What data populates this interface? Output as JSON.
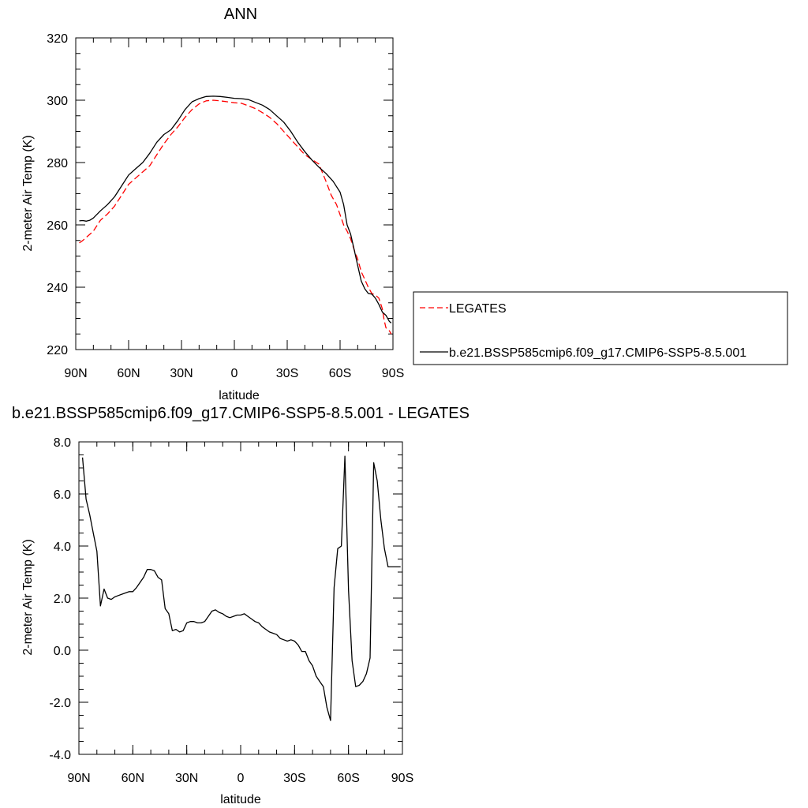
{
  "chart_data": [
    {
      "type": "line",
      "title": "ANN",
      "xlabel": "latitude",
      "ylabel": "2-meter Air Temp (K)",
      "xlim": [
        90,
        -90
      ],
      "ylim": [
        220,
        320
      ],
      "xticks": [
        90,
        60,
        30,
        0,
        -30,
        -60,
        -90
      ],
      "xtick_labels": [
        "90N",
        "60N",
        "30N",
        "0",
        "30S",
        "60S",
        "90S"
      ],
      "yticks": [
        220,
        240,
        260,
        280,
        300,
        320
      ],
      "ytick_labels": [
        "220",
        "240",
        "260",
        "280",
        "300",
        "320"
      ],
      "grid": false,
      "legend_position": "right",
      "series": [
        {
          "name": "LEGATES",
          "color": "#ff0000",
          "dash": "dashed",
          "x": [
            88,
            86,
            84,
            82,
            80,
            76,
            72,
            68,
            64,
            60,
            56,
            52,
            48,
            44,
            40,
            36,
            32,
            28,
            24,
            20,
            16,
            12,
            8,
            4,
            0,
            -4,
            -8,
            -12,
            -16,
            -20,
            -24,
            -28,
            -32,
            -36,
            -40,
            -44,
            -48,
            -52,
            -55,
            -58,
            -62,
            -64,
            -66,
            -68,
            -70,
            -72,
            -74,
            -76,
            -78,
            -80,
            -82,
            -84,
            -85,
            -86,
            -88,
            -89
          ],
          "values": [
            254.2,
            255.0,
            256.0,
            257.0,
            258.0,
            261.5,
            263.5,
            266.0,
            269.5,
            273.0,
            275.0,
            277.0,
            279.0,
            282.5,
            286.0,
            289.0,
            291.5,
            294.5,
            297.0,
            298.8,
            299.8,
            300.0,
            299.8,
            299.5,
            299.2,
            299.0,
            298.2,
            297.3,
            296.0,
            294.5,
            292.5,
            290.0,
            287.5,
            285.0,
            282.5,
            281.0,
            279.5,
            274.0,
            269.5,
            266.5,
            260.0,
            258.0,
            255.5,
            252.0,
            249.0,
            245.0,
            242.5,
            240.0,
            238.0,
            237.5,
            236.5,
            233.0,
            229.5,
            227.0,
            226.0,
            225.0
          ]
        },
        {
          "name": "b.e21.BSSP585cmip6.f09_g17.CMIP6-SSP5-8.5.001",
          "color": "#000000",
          "dash": "solid",
          "x": [
            88,
            86,
            84,
            82,
            80,
            76,
            72,
            68,
            64,
            60,
            56,
            52,
            48,
            44,
            40,
            36,
            32,
            28,
            24,
            20,
            16,
            12,
            8,
            4,
            0,
            -4,
            -8,
            -12,
            -16,
            -20,
            -24,
            -28,
            -32,
            -36,
            -40,
            -44,
            -48,
            -52,
            -56,
            -60,
            -62,
            -64,
            -66,
            -68,
            -70,
            -72,
            -74,
            -76,
            -78,
            -80,
            -82,
            -84,
            -86,
            -88,
            -89
          ],
          "values": [
            261.3,
            261.4,
            261.2,
            261.5,
            262.2,
            264.5,
            266.5,
            269.0,
            272.5,
            276.0,
            278.0,
            280.0,
            283.0,
            286.5,
            289.0,
            290.5,
            293.5,
            297.0,
            299.5,
            300.5,
            301.2,
            301.3,
            301.2,
            300.9,
            300.6,
            300.5,
            300.2,
            299.3,
            298.4,
            297.0,
            295.0,
            293.0,
            290.0,
            286.5,
            283.5,
            280.8,
            278.5,
            276.5,
            274.0,
            270.5,
            266.5,
            260.0,
            257.0,
            252.0,
            247.0,
            242.0,
            239.5,
            238.0,
            237.8,
            236.5,
            234.5,
            232.0,
            231.0,
            229.0,
            228.5
          ]
        }
      ]
    },
    {
      "type": "line",
      "title": "b.e21.BSSP585cmip6.f09_g17.CMIP6-SSP5-8.5.001 - LEGATES",
      "xlabel": "latitude",
      "ylabel": "2-meter Air Temp (K)",
      "xlim": [
        90,
        -90
      ],
      "ylim": [
        -4,
        8
      ],
      "xticks": [
        90,
        60,
        30,
        0,
        -30,
        -60,
        -90
      ],
      "xtick_labels": [
        "90N",
        "60N",
        "30N",
        "0",
        "30S",
        "60S",
        "90S"
      ],
      "yticks": [
        -4,
        -2,
        0,
        2,
        4,
        6,
        8
      ],
      "ytick_labels": [
        "-4.0",
        "-2.0",
        "0.0",
        "2.0",
        "4.0",
        "6.0",
        "8.0"
      ],
      "grid": false,
      "series": [
        {
          "color": "#000000",
          "dash": "solid",
          "x": [
            88,
            86,
            84,
            82,
            80,
            78,
            76,
            74,
            72,
            70,
            68,
            66,
            64,
            62,
            60,
            58,
            56,
            54,
            52,
            50,
            48,
            46,
            44,
            42,
            40,
            38,
            36,
            34,
            32,
            30,
            28,
            26,
            24,
            22,
            20,
            18,
            16,
            14,
            12,
            10,
            8,
            6,
            4,
            2,
            0,
            -2,
            -4,
            -6,
            -8,
            -10,
            -12,
            -14,
            -16,
            -18,
            -20,
            -22,
            -24,
            -26,
            -28,
            -30,
            -32,
            -34,
            -36,
            -38,
            -40,
            -42,
            -44,
            -46,
            -48,
            -50,
            -52,
            -54,
            -56,
            -58,
            -60,
            -62,
            -64,
            -66,
            -68,
            -70,
            -72,
            -74,
            -76,
            -78,
            -80,
            -82,
            -84,
            -86,
            -88,
            -89
          ],
          "values": [
            7.4,
            5.8,
            5.2,
            4.5,
            3.8,
            1.7,
            2.35,
            2.0,
            1.95,
            2.05,
            2.1,
            2.15,
            2.2,
            2.25,
            2.25,
            2.4,
            2.6,
            2.8,
            3.1,
            3.1,
            3.05,
            2.8,
            2.7,
            1.6,
            1.4,
            0.75,
            0.8,
            0.7,
            0.75,
            1.05,
            1.1,
            1.1,
            1.05,
            1.05,
            1.1,
            1.3,
            1.5,
            1.55,
            1.45,
            1.4,
            1.3,
            1.25,
            1.3,
            1.35,
            1.35,
            1.4,
            1.3,
            1.2,
            1.1,
            1.05,
            0.9,
            0.8,
            0.7,
            0.65,
            0.6,
            0.45,
            0.4,
            0.35,
            0.4,
            0.35,
            0.2,
            -0.05,
            -0.05,
            -0.4,
            -0.6,
            -1.0,
            -1.2,
            -1.4,
            -2.2,
            -2.7,
            2.4,
            3.9,
            4.0,
            7.45,
            2.3,
            -0.4,
            -1.4,
            -1.35,
            -1.2,
            -0.9,
            -0.3,
            7.2,
            6.5,
            5.0,
            3.9,
            3.2,
            3.2,
            3.2,
            3.2,
            3.2
          ]
        }
      ]
    }
  ]
}
